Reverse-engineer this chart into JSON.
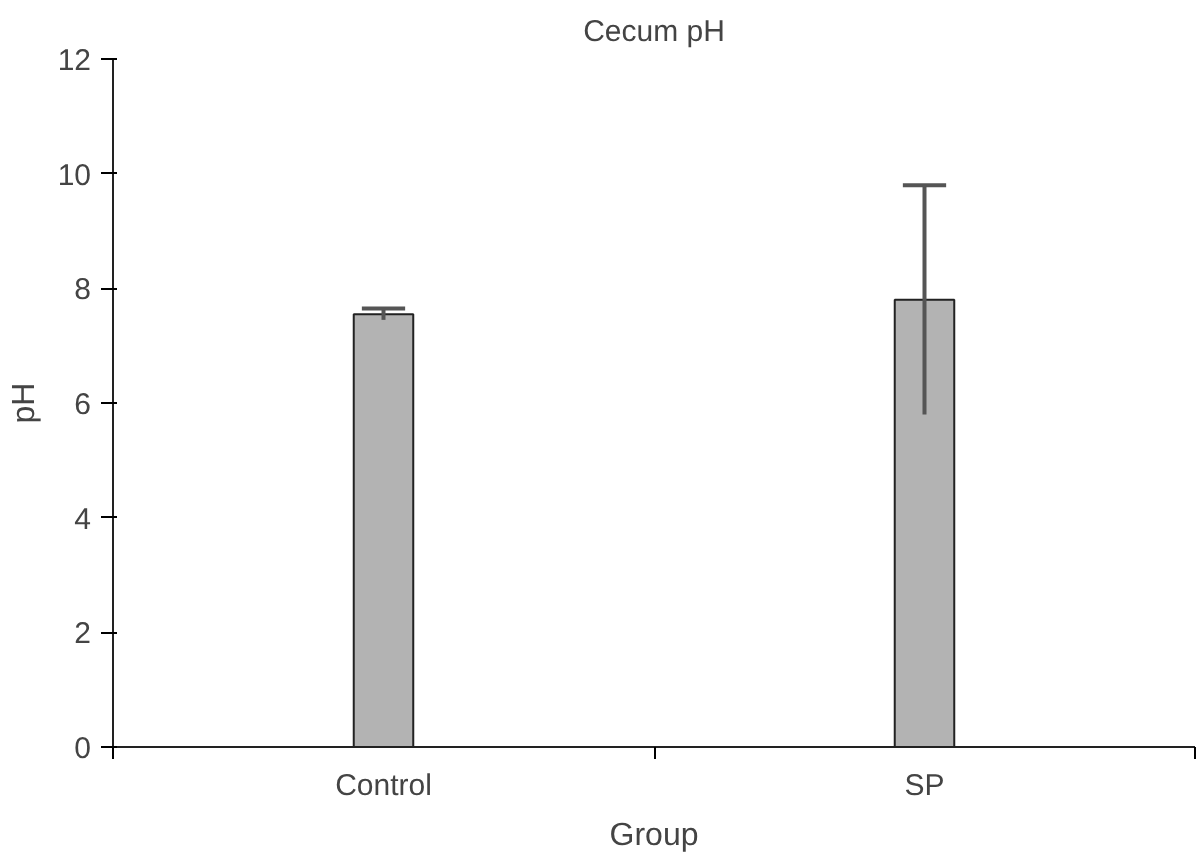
{
  "chart_data": {
    "type": "bar",
    "title": "Cecum pH",
    "xlabel": "Group",
    "ylabel": "pH",
    "categories": [
      "Control",
      "SP"
    ],
    "values": [
      7.55,
      7.8
    ],
    "errors": [
      0.1,
      2.0
    ],
    "color": "#b3b3b3",
    "ylim": [
      0,
      12
    ],
    "yticks": [
      0,
      2,
      4,
      6,
      8,
      10,
      12
    ],
    "grid": false
  }
}
